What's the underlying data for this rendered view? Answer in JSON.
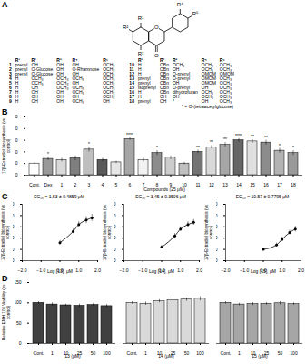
{
  "figure": {
    "panel": "A",
    "structure": {
      "substituents": [
        "R¹",
        "R²",
        "R³",
        "R⁴",
        "R⁵"
      ],
      "ring_oxygen": "O",
      "carbonyl": "O"
    },
    "table": {
      "header": [
        "R¹",
        "R²",
        "R³",
        "R⁴",
        "R⁵"
      ],
      "rows": [
        [
          "1",
          "prenyl",
          "OH",
          "OH",
          "OH",
          "OCH₃"
        ],
        [
          "2",
          "prenyl",
          "O-Glucose",
          "OH",
          "O-Rhamnose",
          "OCH₃"
        ],
        [
          "3",
          "prenyl",
          "O-Glucose",
          "OH",
          "OH",
          "OCH₃"
        ],
        [
          "4",
          "H",
          "OCH₃",
          "OCH₃",
          "OCH₃",
          "OCH₃"
        ],
        [
          "5",
          "H",
          "OCH₃",
          "OCH₃",
          "OH",
          "OCH₃"
        ],
        [
          "6",
          "H",
          "OH",
          "OCH₃",
          "OCH₃",
          "OCH₃"
        ],
        [
          "7",
          "H",
          "OH",
          "OH",
          "OCH₃",
          "OCH₃"
        ],
        [
          "8",
          "H",
          "OH",
          "OH",
          "OH",
          "OCH₃"
        ],
        [
          "9",
          "H",
          "OH",
          "OH",
          "OCH₃",
          "OH"
        ],
        [
          "10",
          "H",
          "OBn",
          "OCH₃",
          "OCH₃",
          "OCH₃"
        ],
        [
          "11",
          "H",
          "OBn",
          "OH",
          "OCH₃",
          "OCH₃"
        ],
        [
          "12",
          "H",
          "OBn",
          "O-prenyl",
          "OMOM",
          "OMOM"
        ],
        [
          "13",
          "prenyl",
          "OBn",
          "O-prenyl",
          "OMOM",
          "OCH₃"
        ],
        [
          "14",
          "prenyl",
          "OBn",
          "OH",
          "OMOM",
          "OCH₃"
        ],
        [
          "15",
          "isoprenyl",
          "OBn",
          "O-prenyl",
          "OH",
          "OCH₃"
        ],
        [
          "16",
          "H",
          "OBn",
          "dihydrofuran",
          "OCH₃",
          "OCH₃"
        ],
        [
          "17",
          "H",
          "OH",
          "OH",
          "OCH₃",
          "OCH₃"
        ],
        [
          "18",
          "prenyl",
          "OH",
          "*",
          "OH",
          "OCH₃"
        ]
      ]
    },
    "note": "* = O-(tetraacetylglucose)"
  },
  "chart_data": [
    {
      "panel": "B",
      "type": "bar",
      "y_label": "17β-Estradiol biosynthesis (vs control)",
      "x_label": "Compounds (25 μM)",
      "categories": [
        "Cont.",
        "Dex",
        "1",
        "2",
        "3",
        "4",
        "5",
        "6",
        "7",
        "8",
        "9",
        "10",
        "11",
        "12",
        "13",
        "14",
        "15",
        "16",
        "17",
        "18"
      ],
      "values": [
        1.0,
        1.4,
        1.3,
        1.45,
        2.2,
        1.3,
        1.1,
        3.1,
        1.3,
        1.9,
        1.5,
        1.0,
        2.0,
        2.4,
        2.6,
        3.0,
        2.9,
        2.8,
        2.1,
        1.9
      ],
      "errors": [
        0.05,
        0.15,
        0.15,
        0.2,
        0.2,
        0.15,
        0.1,
        0.1,
        0.15,
        0.2,
        0.15,
        0.1,
        0.15,
        0.15,
        0.2,
        0.15,
        0.15,
        0.2,
        0.2,
        0.2
      ],
      "significance": [
        null,
        "*",
        null,
        null,
        "*",
        null,
        null,
        "****",
        null,
        "*",
        null,
        null,
        "**",
        "**",
        "**",
        "****",
        "**",
        "**",
        "*",
        "*"
      ],
      "colors": [
        "#ffffff",
        "#999999",
        "#d9d9d9",
        "#7f7f7f",
        "#bfbfbf",
        "#595959",
        "#e6e6e6",
        "#a6a6a6",
        "#f2f2f2",
        "#8c8c8c",
        "#cccccc",
        "#bfbfbf",
        "#737373",
        "#d9d9d9",
        "#a6a6a6",
        "#666666",
        "#e0e0e0",
        "#8c8c8c",
        "#b3b3b3",
        "#999999"
      ],
      "ylim": [
        0,
        5
      ],
      "yticks": [
        0,
        1,
        2,
        3,
        4,
        5
      ]
    },
    {
      "panel": "C",
      "type": "line",
      "marker": "circle",
      "title": "EC₅₀ = 1.53 ± 0.4859 μM",
      "y_label": "17β-Estradiol biosynthesis (vs control)",
      "x_label": "Log [13], μM",
      "x": [
        0,
        0.699,
        1,
        1.398,
        1.699
      ],
      "values": [
        1.6,
        2.6,
        3.2,
        3.6,
        3.8
      ],
      "errors": [
        0.2,
        0.2,
        0.25,
        0.3,
        0.3
      ],
      "xlim": [
        -2,
        2
      ],
      "xticks": [
        -2,
        -1,
        0,
        1,
        2
      ],
      "ylim": [
        0,
        5
      ],
      "yticks": [
        0,
        1,
        2,
        3,
        4,
        5
      ]
    },
    {
      "type": "line",
      "marker": "circle",
      "title": "EC₅₀ = 3.45 ± 0.3506 μM",
      "y_label": "17β-Estradiol biosynthesis (vs control)",
      "x_label": "Log [14], μM",
      "x": [
        0,
        0.699,
        1,
        1.398,
        1.699
      ],
      "values": [
        1.2,
        2.2,
        2.8,
        3.2,
        3.4
      ],
      "errors": [
        0.15,
        0.2,
        0.2,
        0.25,
        0.25
      ],
      "xlim": [
        -2,
        2
      ],
      "xticks": [
        -2,
        -1,
        0,
        1,
        2
      ],
      "ylim": [
        0,
        5
      ],
      "yticks": [
        0,
        1,
        2,
        3,
        4,
        5
      ]
    },
    {
      "type": "line",
      "marker": "circle",
      "title": "EC₅₀ = 10.57 ± 0.7795 μM",
      "y_label": "17β-Estradiol biosynthesis (vs control)",
      "x_label": "Log [15], μM",
      "x": [
        0,
        0.699,
        1,
        1.398,
        1.699
      ],
      "values": [
        1.0,
        1.4,
        1.9,
        2.5,
        2.8
      ],
      "errors": [
        0.1,
        0.15,
        0.2,
        0.2,
        0.25
      ],
      "xlim": [
        -2,
        2
      ],
      "xticks": [
        -2,
        -1,
        0,
        1,
        2
      ],
      "ylim": [
        0,
        5
      ],
      "yticks": [
        0,
        1,
        2,
        3,
        4,
        5
      ]
    },
    {
      "panel": "D",
      "type": "bar",
      "y_label": "Relative EMH 106 Viability (vs control)",
      "categories": [
        "Cont.",
        "1",
        "10",
        "25",
        "50",
        "100"
      ],
      "series": [
        {
          "name": "13 (μM)",
          "color": "#404040",
          "values": [
            100,
            96,
            94,
            93,
            95,
            92
          ],
          "errors": [
            3,
            4,
            3,
            4,
            3,
            4
          ]
        },
        {
          "name": "14 (μM)",
          "color": "#d9d9d9",
          "values": [
            100,
            98,
            104,
            106,
            108,
            110
          ],
          "errors": [
            3,
            4,
            4,
            5,
            4,
            5
          ]
        },
        {
          "name": "15 (μM)",
          "color": "#a6a6a6",
          "values": [
            100,
            96,
            97,
            98,
            99,
            97
          ],
          "errors": [
            3,
            3,
            4,
            3,
            4,
            3
          ]
        }
      ],
      "ylim": [
        0,
        150
      ],
      "yticks": [
        0,
        50,
        100,
        150
      ]
    }
  ]
}
